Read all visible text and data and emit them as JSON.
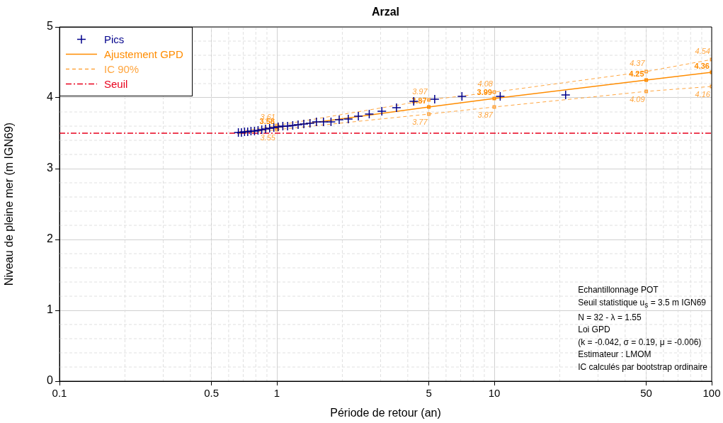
{
  "chart_data": {
    "type": "scatter",
    "title": "Arzal",
    "xlabel": "Période de retour (an)",
    "ylabel": "Niveau de pleine mer (m IGN69)",
    "log": "x",
    "xlim": [
      0.1,
      100
    ],
    "xticks": [
      0.1,
      0.5,
      1,
      5,
      10,
      50,
      100
    ],
    "ylim": [
      0,
      5
    ],
    "yticks": [
      0,
      1,
      2,
      3,
      4,
      5
    ],
    "grid": true,
    "legend": "top left",
    "series": [
      {
        "name": "Pics",
        "type": "scatter",
        "marker": "cross",
        "color": "#00008b",
        "x": [
          21.29,
          10.65,
          7.1,
          5.32,
          4.26,
          3.55,
          3.04,
          2.66,
          2.37,
          2.13,
          1.935,
          1.774,
          1.638,
          1.52,
          1.42,
          1.33,
          1.252,
          1.183,
          1.12,
          1.065,
          1.014,
          0.968,
          0.926,
          0.887,
          0.852,
          0.819,
          0.789,
          0.76,
          0.734,
          0.71,
          0.687,
          0.665
        ],
        "values": [
          4.04,
          4.02,
          4.02,
          3.98,
          3.95,
          3.86,
          3.81,
          3.77,
          3.74,
          3.7,
          3.69,
          3.66,
          3.66,
          3.66,
          3.64,
          3.63,
          3.62,
          3.61,
          3.6,
          3.6,
          3.59,
          3.58,
          3.57,
          3.56,
          3.55,
          3.54,
          3.53,
          3.53,
          3.52,
          3.52,
          3.51,
          3.51
        ]
      },
      {
        "name": "Ajustement GPD",
        "type": "line",
        "marker": "square",
        "line_style": "solid",
        "color": "#ff8c00",
        "x": [
          0.665,
          1,
          5,
          10,
          50,
          100
        ],
        "values": [
          3.5,
          3.58,
          3.87,
          3.99,
          4.25,
          4.36
        ],
        "value_labels": [
          null,
          "3.58",
          "3.87",
          "3.99",
          "4.25",
          "4.36"
        ]
      },
      {
        "name": "IC 90%",
        "type": "line",
        "marker": "square",
        "line_style": "dashed",
        "color": "#ffa640",
        "x": [
          0.665,
          1,
          5,
          10,
          50,
          100
        ],
        "values": [
          3.52,
          3.61,
          3.97,
          4.08,
          4.37,
          4.54
        ],
        "value_labels": [
          null,
          "3.61",
          "3.97",
          "4.08",
          "4.37",
          "4.54"
        ]
      },
      {
        "type": "line",
        "marker": "square",
        "line_style": "dashed",
        "color": "#ffa640",
        "x": [
          0.665,
          1,
          5,
          10,
          50,
          100
        ],
        "values": [
          3.49,
          3.55,
          3.77,
          3.87,
          4.09,
          4.16
        ],
        "value_labels": [
          null,
          "3.55",
          "3.77",
          "3.87",
          "4.09",
          "4.16"
        ]
      }
    ],
    "ref_lines": [
      {
        "axis": "y",
        "value": 3.5,
        "label": "Seuil",
        "color": "#e8001c",
        "line_style": "dashdot"
      }
    ],
    "annotations": [
      "Echantillonnage POT",
      "Seuil statistique u$_{s}$ = 3.5 m IGN69",
      "N = 32 - λ = 1.55",
      "Loi GPD",
      "(k = -0.042, σ = 0.19, μ = -0.006)",
      "Estimateur : LMOM",
      "IC calculés par bootstrap ordinaire"
    ]
  }
}
